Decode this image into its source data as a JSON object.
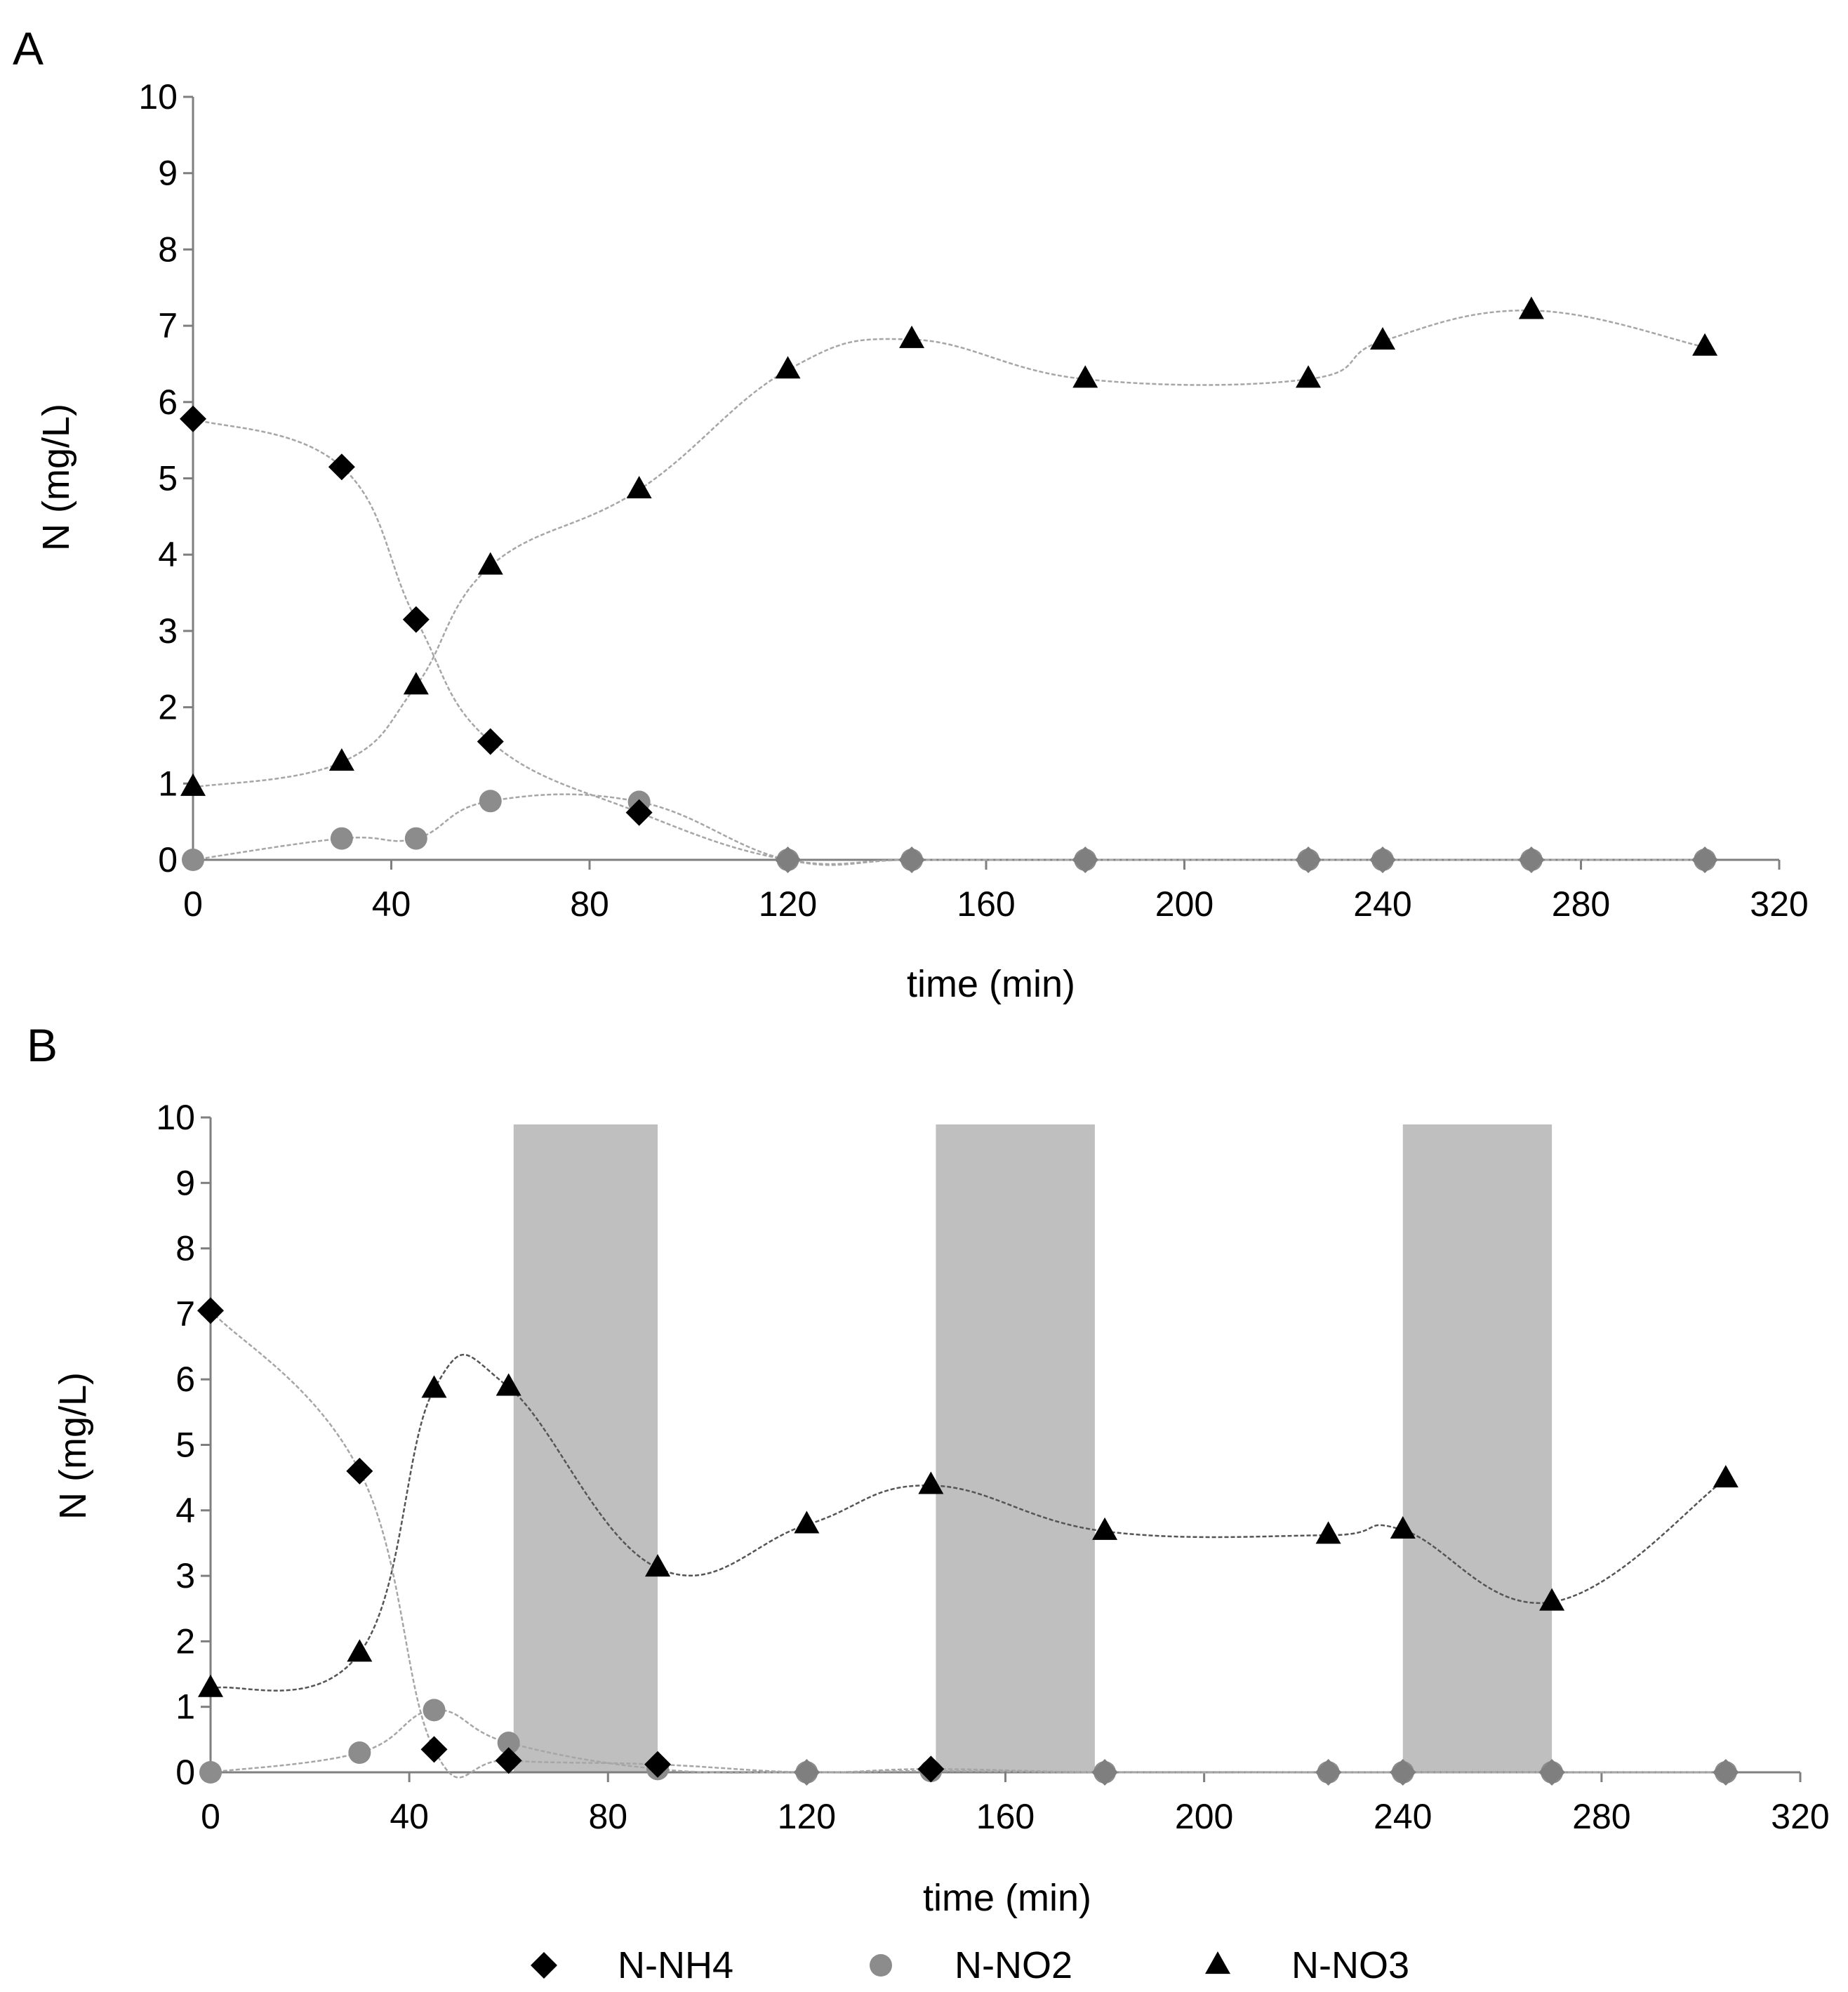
{
  "colors": {
    "nh4": "#000000",
    "no2": "#8c8c8c",
    "no3": "#000000",
    "zero_marker": "#7f7f7f",
    "curve": "#a6a6a6",
    "shade": "#bfbfbf",
    "axis": "#7f7f7f"
  },
  "legend": [
    {
      "key": "nh4",
      "label": "N-NH4",
      "marker": "diamond"
    },
    {
      "key": "no2",
      "label": "N-NO2",
      "marker": "circle"
    },
    {
      "key": "no3",
      "label": "N-NO3",
      "marker": "triangle"
    }
  ],
  "chart_data": [
    {
      "panel": "A",
      "type": "line",
      "xlabel": "time (min)",
      "ylabel": "N (mg/L)",
      "xlim": [
        0,
        320
      ],
      "ylim": [
        0,
        10
      ],
      "xticks": [
        0,
        40,
        80,
        120,
        160,
        200,
        240,
        280,
        320
      ],
      "yticks": [
        0,
        1,
        2,
        3,
        4,
        5,
        6,
        7,
        8,
        9,
        10
      ],
      "shaded_intervals": [],
      "series": [
        {
          "key": "nh4",
          "name": "N-NH4",
          "x": [
            0,
            30,
            45,
            60,
            90,
            120,
            145,
            180,
            225,
            240,
            270,
            305
          ],
          "values": [
            5.78,
            5.15,
            3.15,
            1.55,
            0.62,
            0,
            0,
            0,
            0,
            0,
            0,
            0
          ]
        },
        {
          "key": "no2",
          "name": "N-NO2",
          "x": [
            0,
            30,
            45,
            60,
            90,
            120,
            145,
            180,
            225,
            240,
            270,
            305
          ],
          "values": [
            0,
            0.28,
            0.28,
            0.77,
            0.76,
            0,
            0,
            0,
            0,
            0,
            0,
            0
          ]
        },
        {
          "key": "no3",
          "name": "N-NO3",
          "x": [
            0,
            30,
            45,
            60,
            90,
            120,
            145,
            180,
            225,
            240,
            270,
            305
          ],
          "values": [
            0.95,
            1.28,
            2.28,
            3.85,
            4.85,
            6.42,
            6.82,
            6.3,
            6.3,
            6.8,
            7.2,
            6.72
          ]
        }
      ]
    },
    {
      "panel": "B",
      "type": "line",
      "xlabel": "time (min)",
      "ylabel": "N (mg/L)",
      "xlim": [
        0,
        320
      ],
      "ylim": [
        0,
        10
      ],
      "xticks": [
        0,
        40,
        80,
        120,
        160,
        200,
        240,
        280,
        320
      ],
      "yticks": [
        0,
        1,
        2,
        3,
        4,
        5,
        6,
        7,
        8,
        9,
        10
      ],
      "shaded_intervals": [
        [
          61,
          90
        ],
        [
          146,
          178
        ],
        [
          240,
          270
        ]
      ],
      "series": [
        {
          "key": "nh4",
          "name": "N-NH4",
          "x": [
            0,
            30,
            45,
            60,
            90,
            120,
            145,
            180,
            225,
            240,
            270,
            305
          ],
          "values": [
            7.05,
            4.6,
            0.35,
            0.18,
            0.12,
            0,
            0.05,
            0,
            0,
            0,
            0,
            0
          ]
        },
        {
          "key": "no2",
          "name": "N-NO2",
          "x": [
            0,
            30,
            45,
            60,
            90,
            120,
            145,
            180,
            225,
            240,
            270,
            305
          ],
          "values": [
            0,
            0.3,
            0.95,
            0.45,
            0.05,
            0,
            0.02,
            0,
            0,
            0,
            0,
            0
          ]
        },
        {
          "key": "no3",
          "name": "N-NO3",
          "x": [
            0,
            30,
            45,
            60,
            90,
            120,
            145,
            180,
            225,
            240,
            270,
            305
          ],
          "values": [
            1.28,
            1.82,
            5.85,
            5.88,
            3.12,
            3.78,
            4.38,
            3.68,
            3.62,
            3.7,
            2.6,
            4.48
          ]
        }
      ]
    }
  ]
}
